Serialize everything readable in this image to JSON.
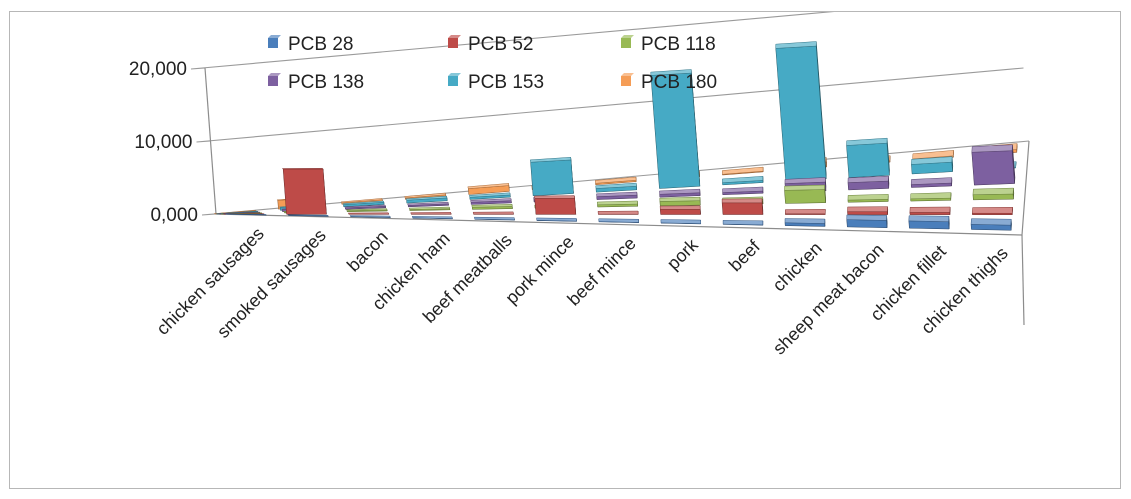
{
  "chart_data": {
    "type": "bar",
    "subtype": "3d-clustered-column",
    "title": "",
    "xlabel": "",
    "ylabel": "",
    "ylim": [
      0,
      20000
    ],
    "y_ticks": [
      "0,000",
      "10,000",
      "20,000"
    ],
    "grid": true,
    "legend_position": "top",
    "categories": [
      "chicken sausages",
      "smoked sausages",
      "bacon",
      "chicken ham",
      "beef meatballs",
      "pork mince",
      "beef mince",
      "pork",
      "beef",
      "chicken",
      "sheep meat bacon",
      "chicken fillet",
      "chicken thighs"
    ],
    "series": [
      {
        "name": "PCB 28",
        "color": "#4a7ebb",
        "values": [
          40,
          40,
          40,
          40,
          40,
          40,
          40,
          40,
          40,
          400,
          1000,
          1000,
          700
        ]
      },
      {
        "name": "PCB 52",
        "color": "#be4b48",
        "values": [
          40,
          6200,
          40,
          40,
          40,
          2200,
          40,
          700,
          1600,
          100,
          400,
          300,
          200
        ]
      },
      {
        "name": "PCB 118",
        "color": "#98b954",
        "values": [
          40,
          150,
          150,
          150,
          300,
          100,
          300,
          600,
          400,
          1800,
          300,
          300,
          700
        ]
      },
      {
        "name": "PCB 138",
        "color": "#7d60a0",
        "values": [
          40,
          300,
          200,
          200,
          300,
          300,
          400,
          400,
          300,
          1200,
          1000,
          400,
          4500
        ]
      },
      {
        "name": "PCB 153",
        "color": "#46aac5",
        "values": [
          40,
          400,
          300,
          400,
          300,
          4600,
          500,
          15500,
          300,
          18200,
          4400,
          1300,
          50
        ]
      },
      {
        "name": "PCB 180",
        "color": "#f59d56",
        "values": [
          40,
          1200,
          200,
          200,
          800,
          200,
          200,
          300,
          100,
          700,
          200,
          200,
          400
        ]
      }
    ]
  }
}
